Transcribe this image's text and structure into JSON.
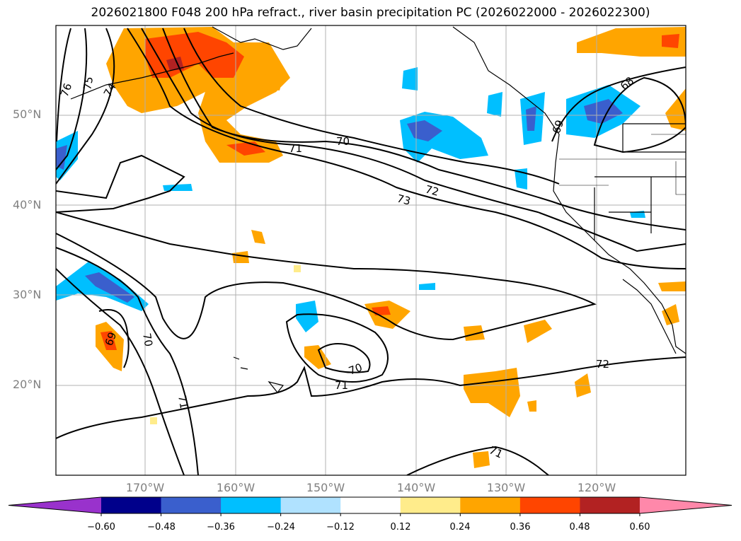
{
  "title": "2026021800 F048 200 hPa refract., river basin precipitation PC (2026022000 - 2026022300)",
  "map": {
    "lat_labels": [
      "50°N",
      "40°N",
      "30°N",
      "20°N"
    ],
    "lon_labels": [
      "170°W",
      "160°W",
      "150°W",
      "140°W",
      "130°W",
      "120°W"
    ],
    "contour_labels": [
      "76",
      "75",
      "74",
      "71",
      "70",
      "72",
      "73",
      "68",
      "69",
      "70",
      "71",
      "70",
      "71",
      "72",
      "71",
      "69"
    ]
  },
  "colorbar": {
    "ticks": [
      "−0.60",
      "−0.48",
      "−0.36",
      "−0.24",
      "−0.12",
      "0.12",
      "0.24",
      "0.36",
      "0.48",
      "0.60"
    ],
    "colors": [
      "#9932cc",
      "#00008b",
      "#3a5fcd",
      "#00bfff",
      "#b0e2ff",
      "#ffffff",
      "#ffec8b",
      "#ffa500",
      "#ff4500",
      "#b22222",
      "#ff88aa"
    ]
  }
}
